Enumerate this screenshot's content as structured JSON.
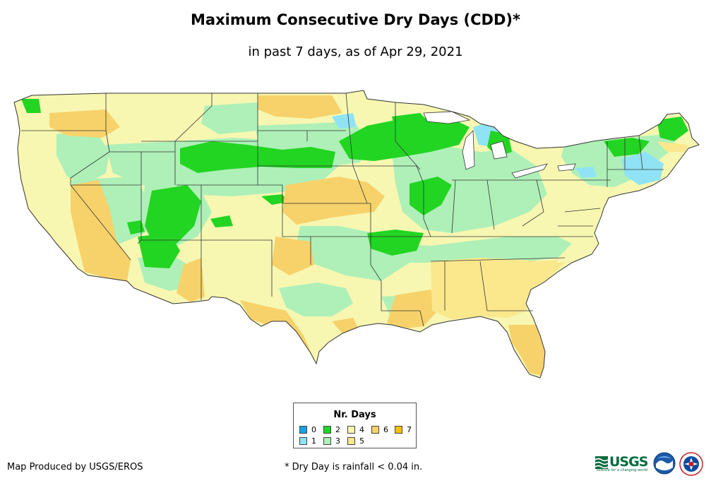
{
  "title": "Maximum Consecutive Dry Days (CDD)*",
  "subtitle": "in past 7 days, as of Apr 29, 2021",
  "legend": {
    "title": "Nr. Days",
    "items": [
      {
        "label": "0",
        "color": "#1e9ee6"
      },
      {
        "label": "1",
        "color": "#8fe3f5"
      },
      {
        "label": "2",
        "color": "#22d522"
      },
      {
        "label": "3",
        "color": "#aef0b8"
      },
      {
        "label": "4",
        "color": "#f7f7b2"
      },
      {
        "label": "5",
        "color": "#fbe88d"
      },
      {
        "label": "6",
        "color": "#f7d26a"
      },
      {
        "label": "7",
        "color": "#f5c100"
      }
    ]
  },
  "credit": "Map Produced by USGS/EROS",
  "footnote": "* Dry Day is rainfall < 0.04 in.",
  "logos": {
    "usgs": "USGS",
    "usgs_tagline": "science for a changing world",
    "noaa": "NOAA",
    "nws": "NATIONAL WEATHER SERVICE"
  },
  "colors": {
    "state_border": "#333333",
    "water": "#ffffff"
  },
  "map": {
    "region": "Contiguous United States",
    "base_category": "4"
  }
}
